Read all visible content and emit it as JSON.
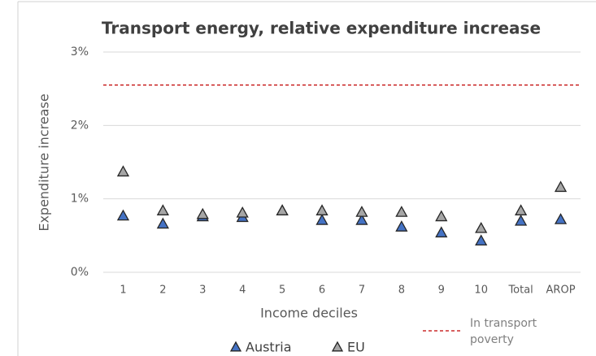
{
  "chart_data": {
    "type": "scatter",
    "title": "Transport energy, relative expenditure increase",
    "y_label": "Expenditure increase",
    "x_label": "Income deciles",
    "categories": [
      "1",
      "2",
      "3",
      "4",
      "5",
      "6",
      "7",
      "8",
      "9",
      "10",
      "Total",
      "AROP"
    ],
    "series": [
      {
        "name": "Austria",
        "color": "#4472c4",
        "values": [
          0.77,
          0.66,
          0.76,
          0.75,
          0.84,
          0.71,
          0.71,
          0.62,
          0.54,
          0.43,
          0.7,
          0.72
        ]
      },
      {
        "name": "EU",
        "color": "#a6a6a6",
        "values": [
          1.37,
          0.84,
          0.79,
          0.81,
          0.84,
          0.84,
          0.82,
          0.82,
          0.76,
          0.6,
          0.84,
          1.16
        ]
      }
    ],
    "reference_line": {
      "name": "In transport poverty",
      "value": 2.55,
      "color": "#c00000"
    },
    "ylim": [
      0,
      3
    ],
    "yticks": [
      {
        "value": 0,
        "label": "0%"
      },
      {
        "value": 1,
        "label": "1%"
      },
      {
        "value": 2,
        "label": "2%"
      },
      {
        "value": 3,
        "label": "3%"
      }
    ],
    "grid": true,
    "legend": "bottom"
  }
}
